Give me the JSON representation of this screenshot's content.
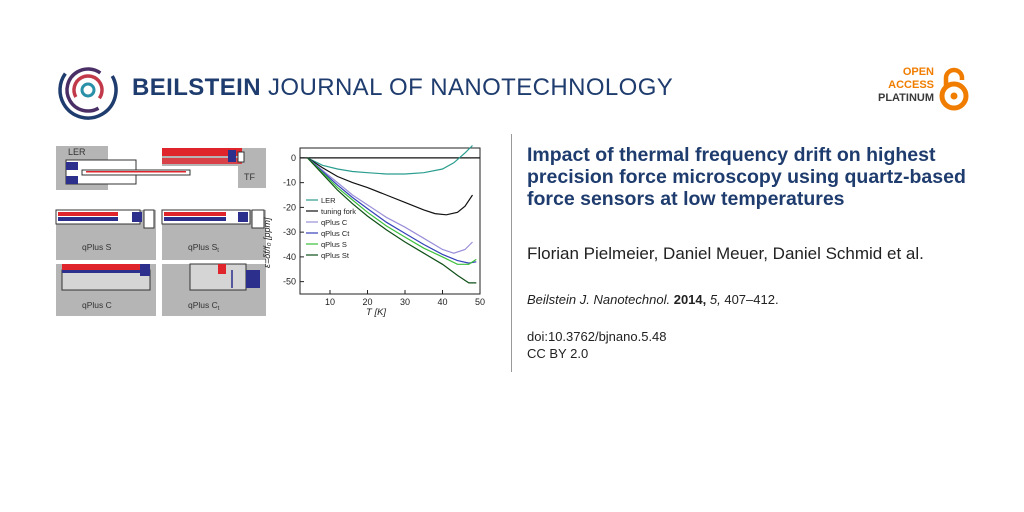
{
  "header": {
    "journal_bold": "BEILSTEIN",
    "journal_rest": " JOURNAL OF NANOTECHNOLOGY",
    "open_access": [
      "OPEN",
      "ACCESS",
      "PLATINUM"
    ]
  },
  "article": {
    "title": "Impact of thermal frequency drift on high­est precision force microscopy using quartz-based force sensors at low tempera­tures",
    "authors": "Florian Pielmeier, Daniel Meuer, Daniel Schmid et al.",
    "journal_abbrev": "Beilstein J. Nanotechnol.",
    "year": "2014,",
    "volume": "5,",
    "pages": " 407–412.",
    "doi": "doi:10.3762/bjnano.5.48",
    "license": "CC BY 2.0"
  },
  "figure": {
    "panel_labels": [
      "LER",
      "TF",
      "qPlus S",
      "qPlus S",
      "qPlus C",
      "qPlus C"
    ],
    "panel_subscripts": [
      "",
      "",
      "",
      "t",
      "",
      "t"
    ],
    "colors": {
      "red": "#e0242c",
      "navy": "#2c2f8c",
      "gray": "#b5b5b5",
      "light": "#d5d5d5"
    }
  },
  "chart_data": {
    "type": "line",
    "xlabel": "T [K]",
    "ylabel": "ε=δf/f₀ [ppm]",
    "xlim": [
      2,
      50
    ],
    "ylim": [
      -55,
      4
    ],
    "xticks": [
      10,
      20,
      30,
      40,
      50
    ],
    "yticks": [
      0,
      -10,
      -20,
      -30,
      -40,
      -50
    ],
    "zero_line": true,
    "legend_position": "left",
    "series": [
      {
        "name": "LER",
        "color": "#2a9d8f",
        "x": [
          4,
          8,
          12,
          16,
          20,
          25,
          30,
          35,
          40,
          43,
          46,
          48
        ],
        "y": [
          0,
          -3,
          -4.5,
          -5.5,
          -6,
          -6.5,
          -6.5,
          -6,
          -4.5,
          -2,
          2,
          5
        ]
      },
      {
        "name": "tuning fork",
        "color": "#111111",
        "x": [
          4,
          8,
          12,
          16,
          20,
          25,
          30,
          35,
          38,
          41,
          44,
          46,
          48
        ],
        "y": [
          0,
          -4,
          -7.5,
          -10,
          -12,
          -15,
          -18,
          -21,
          -22.5,
          -23,
          -22,
          -19.5,
          -15
        ]
      },
      {
        "name": "qPlus C",
        "color": "#9a8fd8",
        "x": [
          4,
          8,
          12,
          16,
          20,
          25,
          30,
          35,
          40,
          43,
          46,
          48
        ],
        "y": [
          0,
          -5,
          -10,
          -15,
          -19,
          -24,
          -28,
          -32.5,
          -37,
          -38.5,
          -37,
          -34
        ]
      },
      {
        "name": "qPlus Ct",
        "color": "#3441b8",
        "x": [
          4,
          8,
          12,
          16,
          20,
          25,
          30,
          35,
          40,
          44,
          47,
          49
        ],
        "y": [
          0,
          -5.5,
          -11,
          -16,
          -20.5,
          -26,
          -30.5,
          -35,
          -39,
          -41.5,
          -42.5,
          -42
        ]
      },
      {
        "name": "qPlus S",
        "color": "#3bbf3b",
        "x": [
          4,
          8,
          12,
          16,
          20,
          25,
          30,
          35,
          40,
          44,
          47,
          49
        ],
        "y": [
          0,
          -6,
          -12,
          -17,
          -22,
          -27.5,
          -32,
          -36.5,
          -40,
          -43,
          -43,
          -41
        ]
      },
      {
        "name": "qPlus St",
        "color": "#0f4f17",
        "x": [
          4,
          8,
          12,
          16,
          20,
          25,
          30,
          35,
          40,
          44,
          47,
          49
        ],
        "y": [
          0,
          -6.5,
          -13,
          -18.5,
          -23.5,
          -29,
          -34,
          -38.5,
          -43,
          -47.5,
          -50.5,
          -50.5
        ]
      }
    ]
  }
}
